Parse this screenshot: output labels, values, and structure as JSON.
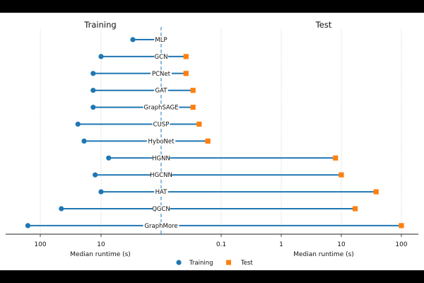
{
  "chart_data": {
    "type": "dumbbell",
    "panels": [
      {
        "title": "Training",
        "xlabel": "Median runtime (s)",
        "xscale": "log",
        "inverted": true,
        "ticks": [
          {
            "value": 100,
            "label": "100"
          },
          {
            "value": 10,
            "label": "10"
          }
        ]
      },
      {
        "title": "Test",
        "xlabel": "Median runtime (s)",
        "xscale": "log",
        "inverted": false,
        "ticks": [
          {
            "value": 0.1,
            "label": "0.1"
          },
          {
            "value": 1,
            "label": "1"
          },
          {
            "value": 10,
            "label": "10"
          },
          {
            "value": 100,
            "label": "100"
          }
        ]
      }
    ],
    "models": [
      "MLP",
      "GCN",
      "PCNet",
      "GAT",
      "GraphSAGE",
      "CUSP",
      "HyboNet",
      "HGNN",
      "HGCNN",
      "HAT",
      "QGCN",
      "GraphMore"
    ],
    "series": [
      {
        "name": "Training",
        "marker": "circle",
        "color": "#1f77b4",
        "values": [
          3.0,
          10.0,
          13.5,
          13.5,
          13.5,
          24.0,
          19.0,
          7.5,
          12.5,
          10.0,
          45.0,
          160.0
        ]
      },
      {
        "name": "Test",
        "marker": "square",
        "color": "#ff7f0e",
        "values": [
          null,
          0.026,
          0.026,
          0.034,
          0.034,
          0.043,
          0.06,
          8.0,
          10.0,
          38.0,
          17.0,
          100.0
        ]
      }
    ],
    "grid": "vertical",
    "legend_position": "bottom-center"
  }
}
